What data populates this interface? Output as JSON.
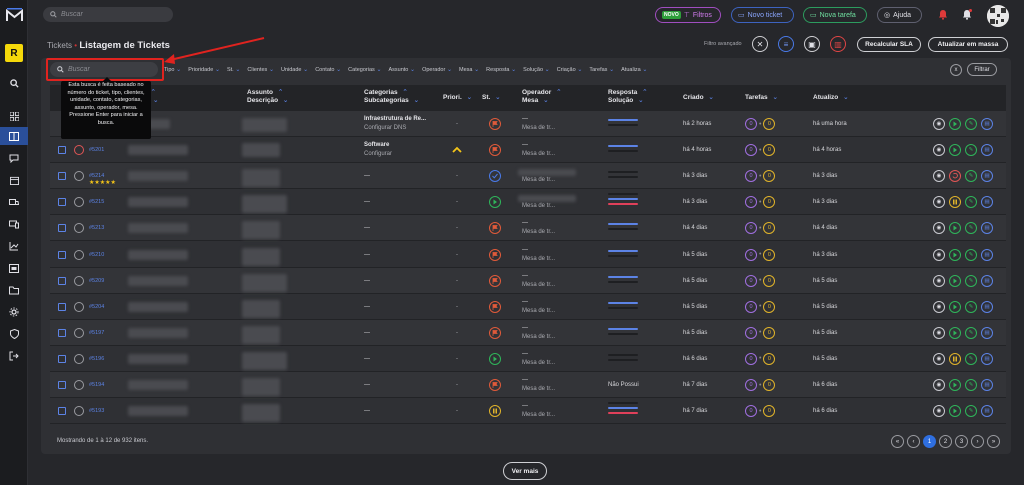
{
  "sidebar": {
    "badge": "R",
    "icons": [
      "search-icon",
      "dashboard-icon",
      "tickets-icon",
      "chat-icon",
      "calendar-icon",
      "truck-icon",
      "devices-icon",
      "chart-icon",
      "inventory-icon",
      "folder-icon",
      "settings-icon",
      "shield-icon",
      "logout-icon"
    ]
  },
  "topbar": {
    "search_placeholder": "Buscar",
    "filtros_tag": "NOVO",
    "filtros_label": "Filtros",
    "novo_ticket": "Novo ticket",
    "nova_tarefa": "Nova tarefa",
    "ajuda": "Ajuda"
  },
  "header": {
    "breadcrumb_root": "Tickets",
    "separator": "•",
    "title": "Listagem de Tickets",
    "filtro_avancado": "Filtro avançado",
    "recalcular": "Recalcular SLA",
    "atualizar_massa": "Atualizar em massa"
  },
  "filters": {
    "search_placeholder": "Buscar",
    "chips": [
      "Tipo",
      "Prioridade",
      "St.",
      "Clientes",
      "Unidade",
      "Contato",
      "Categorias",
      "Assunto",
      "Operador",
      "Mesa",
      "Resposta",
      "Solução",
      "Criação",
      "Tarefas",
      "Atualiza"
    ],
    "clear_label": "x",
    "filtrar_label": "Filtrar",
    "tooltip": "Esta busca é feita baseado no número do ticket, tipo, clientes, unidade, contato, categorias, assunto, operador, mesa. Pressione Enter para iniciar a busca."
  },
  "table": {
    "headers": {
      "ticket": "e",
      "ticket2": "to",
      "assunto": "Assunto",
      "descricao": "Descrição",
      "categorias": "Categorias",
      "subcategorias": "Subcategorias",
      "prioridade": "Priori.",
      "status": "St.",
      "operador": "Operador",
      "mesa": "Mesa",
      "resposta": "Resposta",
      "solucao": "Solução",
      "criado": "Criado",
      "tarefas": "Tarefas",
      "atualizo": "Atualizo"
    },
    "rows": [
      {
        "id": "",
        "face": "none",
        "stars": "",
        "cat": "Infraestrutura de Re...",
        "sub": "Configurar DNS",
        "prio": "-",
        "status": "flag",
        "op": "---",
        "mesa": "Mesa de tr...",
        "resp": "bars-blue",
        "criado": "há 2 horas",
        "atual": "há uma hora",
        "t1": "0",
        "t2": "0",
        "act3": "play"
      },
      {
        "id": "#5201",
        "face": "red",
        "stars": "",
        "cat": "Software",
        "sub": "Configurar",
        "prio": "up",
        "status": "flag",
        "op": "---",
        "mesa": "Mesa de tr...",
        "resp": "bars-blue",
        "criado": "há 4 horas",
        "atual": "há 4 horas",
        "t1": "0",
        "t2": "0",
        "act3": "play"
      },
      {
        "id": "#5214",
        "face": "gray",
        "stars": "★★★★★",
        "cat": "---",
        "sub": "",
        "prio": "-",
        "status": "check",
        "op": "",
        "mesa": "Mesa de tr...",
        "resp": "bars-dark",
        "criado": "há 3 dias",
        "atual": "há 3 dias",
        "t1": "0",
        "t2": "0",
        "act3": "undo"
      },
      {
        "id": "#5215",
        "face": "gray",
        "stars": "",
        "cat": "---",
        "sub": "",
        "prio": "-",
        "status": "play",
        "op": "",
        "mesa": "Mesa de tr...",
        "resp": "bars-red",
        "criado": "há 3 dias",
        "atual": "há 3 dias",
        "t1": "0",
        "t2": "0",
        "act3": "pause"
      },
      {
        "id": "#5213",
        "face": "gray",
        "stars": "",
        "cat": "---",
        "sub": "",
        "prio": "-",
        "status": "flag",
        "op": "---",
        "mesa": "Mesa de tr...",
        "resp": "bars-blue",
        "criado": "há 4 dias",
        "atual": "há 4 dias",
        "t1": "0",
        "t2": "0",
        "act3": "play"
      },
      {
        "id": "#5210",
        "face": "gray",
        "stars": "",
        "cat": "---",
        "sub": "",
        "prio": "-",
        "status": "flag",
        "op": "---",
        "mesa": "Mesa de tr...",
        "resp": "bars-blue",
        "criado": "há 5 dias",
        "atual": "há 3 dias",
        "t1": "0",
        "t2": "0",
        "act3": "play"
      },
      {
        "id": "#5209",
        "face": "gray",
        "stars": "",
        "cat": "---",
        "sub": "",
        "prio": "-",
        "status": "flag",
        "op": "---",
        "mesa": "Mesa de tr...",
        "resp": "bars-blue",
        "criado": "há 5 dias",
        "atual": "há 5 dias",
        "t1": "0",
        "t2": "0",
        "act3": "play"
      },
      {
        "id": "#5204",
        "face": "gray",
        "stars": "",
        "cat": "---",
        "sub": "",
        "prio": "-",
        "status": "flag",
        "op": "---",
        "mesa": "Mesa de tr...",
        "resp": "bars-blue",
        "criado": "há 5 dias",
        "atual": "há 5 dias",
        "t1": "0",
        "t2": "0",
        "act3": "play"
      },
      {
        "id": "#5197",
        "face": "gray",
        "stars": "",
        "cat": "---",
        "sub": "",
        "prio": "-",
        "status": "flag",
        "op": "---",
        "mesa": "Mesa de tr...",
        "resp": "bars-blue",
        "criado": "há 5 dias",
        "atual": "há 5 dias",
        "t1": "0",
        "t2": "0",
        "act3": "play"
      },
      {
        "id": "#5196",
        "face": "gray",
        "stars": "",
        "cat": "---",
        "sub": "",
        "prio": "-",
        "status": "play",
        "op": "---",
        "mesa": "Mesa de tr...",
        "resp": "bars-dark",
        "criado": "há 6 dias",
        "atual": "há 5 dias",
        "t1": "0",
        "t2": "0",
        "act3": "pause"
      },
      {
        "id": "#5194",
        "face": "gray",
        "stars": "",
        "cat": "---",
        "sub": "",
        "prio": "-",
        "status": "flag",
        "op": "---",
        "mesa": "Mesa de tr...",
        "resp": "Não Possui",
        "criado": "há 7 dias",
        "atual": "há 6 dias",
        "t1": "0",
        "t2": "0",
        "act3": "play"
      },
      {
        "id": "#5193",
        "face": "gray",
        "stars": "",
        "cat": "---",
        "sub": "",
        "prio": "-",
        "status": "pause",
        "op": "---",
        "mesa": "Mesa de tr...",
        "resp": "bars-red",
        "criado": "há 7 dias",
        "atual": "há 6 dias",
        "t1": "0",
        "t2": "0",
        "act3": "play"
      }
    ]
  },
  "footer": {
    "summary": "Mostrando de 1 à 12 de 932 itens.",
    "pages": [
      "«",
      "‹",
      "1",
      "2",
      "3",
      "›",
      "»"
    ],
    "active_page": "1",
    "ver_mais": "Ver mais"
  },
  "colors": {
    "accent": "#2f6fe0",
    "flag": "#e05a3a",
    "play": "#2fb55a",
    "pause": "#e0b32a",
    "task_purple": "#a06fe0",
    "task_yellow": "#e0b32a",
    "highlight": "#e0231f"
  }
}
